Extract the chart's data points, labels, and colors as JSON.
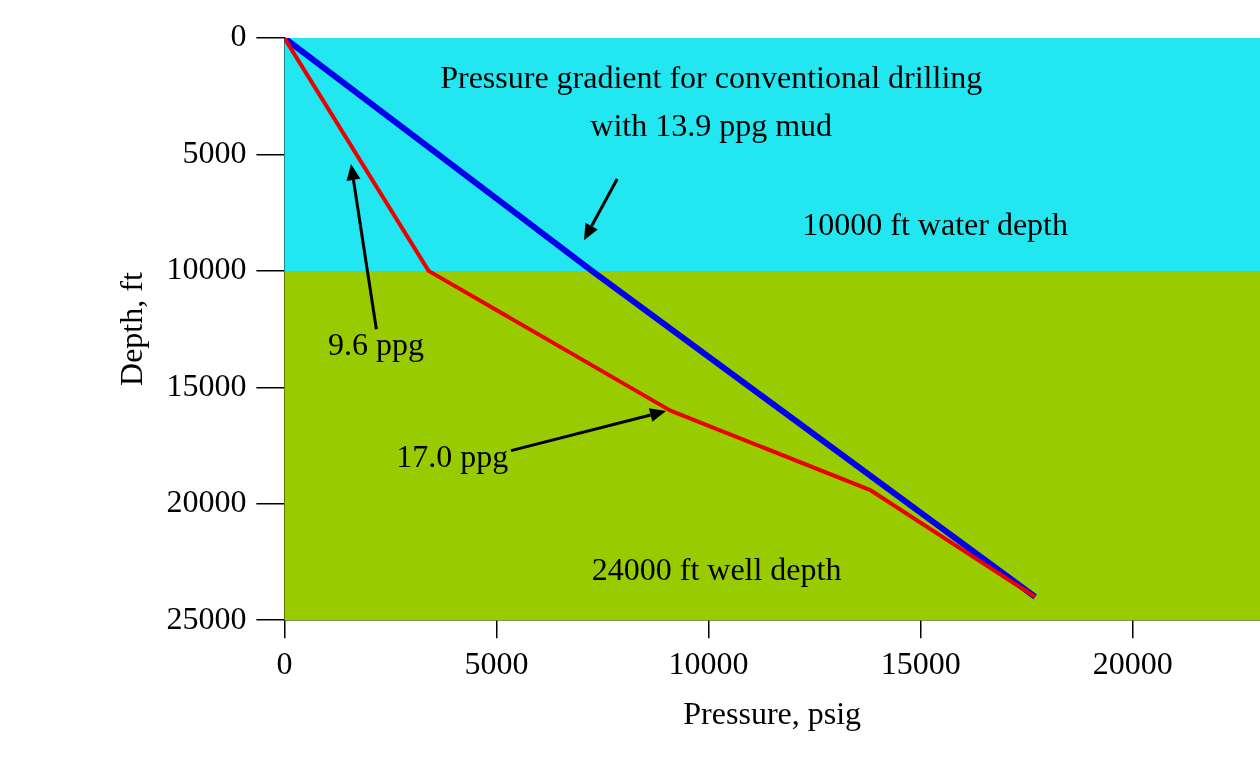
{
  "chart_data": {
    "type": "line",
    "xlabel": "Pressure, psig",
    "ylabel": "Depth, ft",
    "xlim": [
      0,
      23000
    ],
    "xticks": [
      0,
      5000,
      10000,
      15000,
      20000
    ],
    "ylim": [
      25000,
      0
    ],
    "yticks": [
      0,
      5000,
      10000,
      15000,
      20000,
      25000
    ],
    "series": [
      {
        "color": "#0000ee",
        "x": [
          0,
          7250,
          17700
        ],
        "values": [
          0,
          10000,
          24000
        ]
      },
      {
        "color": "#ee0000",
        "x": [
          0,
          3400,
          9100,
          13800,
          17700
        ],
        "values": [
          0,
          10000,
          16000,
          19400,
          24000
        ]
      }
    ],
    "bands": [
      {
        "axis": "y",
        "from": 0,
        "to": 10000,
        "label": "10000 ft water depth",
        "color": "#22e6f0"
      },
      {
        "axis": "y",
        "from": 10000,
        "to": 25000,
        "label": "24000 ft well depth",
        "color": "#99cc00"
      }
    ],
    "annotations": [
      "Pressure gradient for conventional drilling with 13.9 ppg mud",
      "9.6 ppg",
      "17.0 ppg"
    ],
    "grid": false,
    "legend": false,
    "line_style": "solid",
    "marker": "none"
  }
}
